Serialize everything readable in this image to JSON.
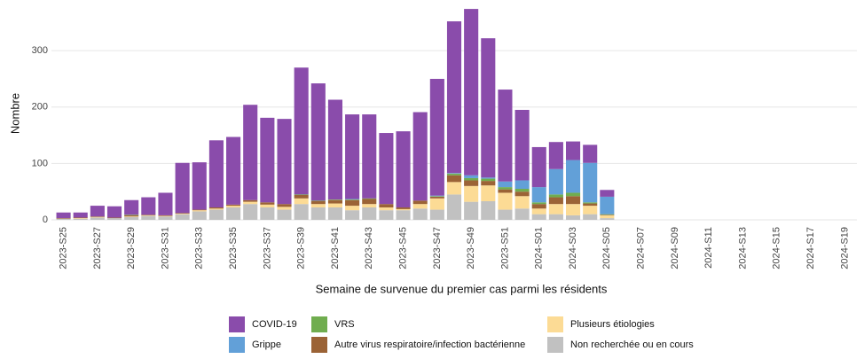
{
  "chart_data": {
    "type": "stacked-bar",
    "x_label": "Semaine de survenue du premier cas parmi les résidents",
    "y_label": "Nombre",
    "categories": [
      "2023-S25",
      null,
      "2023-S27",
      null,
      "2023-S29",
      null,
      "2023-S31",
      null,
      "2023-S33",
      null,
      "2023-S35",
      null,
      "2023-S37",
      null,
      "2023-S39",
      null,
      "2023-S41",
      null,
      "2023-S43",
      null,
      "2023-S45",
      null,
      "2023-S47",
      null,
      "2023-S49",
      null,
      "2023-S51",
      null,
      "2024-S01",
      null,
      "2024-S03",
      null,
      "2024-S05",
      null,
      "2024-S07",
      null,
      "2024-S09",
      null,
      "2024-S11",
      null,
      "2024-S13",
      null,
      "2024-S15",
      null,
      "2024-S17",
      null,
      "2024-S19"
    ],
    "series": [
      {
        "name": "COVID-19",
        "color": "#8a4cab",
        "values": [
          10,
          9,
          19,
          20,
          26,
          31,
          40,
          89,
          84,
          119,
          120,
          169,
          150,
          151,
          225,
          208,
          177,
          150,
          149,
          126,
          135,
          157,
          207,
          269,
          295,
          247,
          163,
          125,
          71,
          48,
          33,
          32,
          12,
          0,
          0,
          0,
          0,
          0,
          0,
          0,
          0,
          0,
          0,
          0,
          0,
          0,
          0
        ]
      },
      {
        "name": "Grippe",
        "color": "#62a0d8",
        "values": [
          0,
          0,
          0,
          0,
          0,
          0,
          0,
          0,
          0,
          0,
          0,
          0,
          0,
          0,
          0,
          0,
          0,
          1,
          0,
          0,
          0,
          0,
          1,
          1,
          5,
          2,
          10,
          15,
          27,
          45,
          58,
          70,
          31,
          0,
          0,
          0,
          0,
          0,
          0,
          0,
          0,
          0,
          0,
          0,
          0,
          0,
          0
        ]
      },
      {
        "name": "VRS",
        "color": "#70ad4f",
        "values": [
          0,
          0,
          0,
          0,
          1,
          0,
          0,
          0,
          0,
          0,
          0,
          0,
          0,
          0,
          1,
          1,
          1,
          1,
          1,
          0,
          0,
          0,
          1,
          3,
          4,
          4,
          4,
          5,
          3,
          5,
          6,
          2,
          1,
          0,
          0,
          0,
          0,
          0,
          0,
          0,
          0,
          0,
          0,
          0,
          0,
          0,
          0
        ]
      },
      {
        "name": "Autre virus respiratoire/infection bactérienne",
        "color": "#9b6336",
        "values": [
          1,
          1,
          1,
          1,
          2,
          1,
          1,
          1,
          1,
          2,
          2,
          3,
          4,
          5,
          6,
          5,
          6,
          10,
          9,
          6,
          3,
          6,
          3,
          12,
          10,
          8,
          6,
          8,
          8,
          12,
          14,
          4,
          1,
          0,
          0,
          0,
          0,
          0,
          0,
          0,
          0,
          0,
          0,
          0,
          0,
          0,
          0
        ]
      },
      {
        "name": "Plusieurs étiologies",
        "color": "#fcdb95",
        "values": [
          0,
          1,
          1,
          0,
          1,
          1,
          1,
          1,
          2,
          2,
          3,
          4,
          5,
          5,
          10,
          6,
          7,
          8,
          6,
          5,
          2,
          8,
          20,
          22,
          28,
          28,
          30,
          22,
          10,
          18,
          20,
          15,
          5,
          0,
          0,
          0,
          0,
          0,
          0,
          0,
          0,
          0,
          0,
          0,
          0,
          0,
          0
        ]
      },
      {
        "name": "Non recherchée ou en cours",
        "color": "#c1c1c1",
        "values": [
          2,
          2,
          4,
          3,
          5,
          7,
          6,
          10,
          15,
          18,
          22,
          28,
          22,
          18,
          28,
          22,
          22,
          17,
          22,
          17,
          17,
          20,
          18,
          45,
          32,
          33,
          18,
          20,
          10,
          10,
          8,
          10,
          3,
          0,
          0,
          0,
          0,
          0,
          0,
          0,
          0,
          0,
          0,
          0,
          0,
          0,
          0
        ]
      }
    ],
    "ylim": [
      0,
      382
    ],
    "yticks": [
      0,
      100,
      200,
      300
    ],
    "grid": true
  }
}
